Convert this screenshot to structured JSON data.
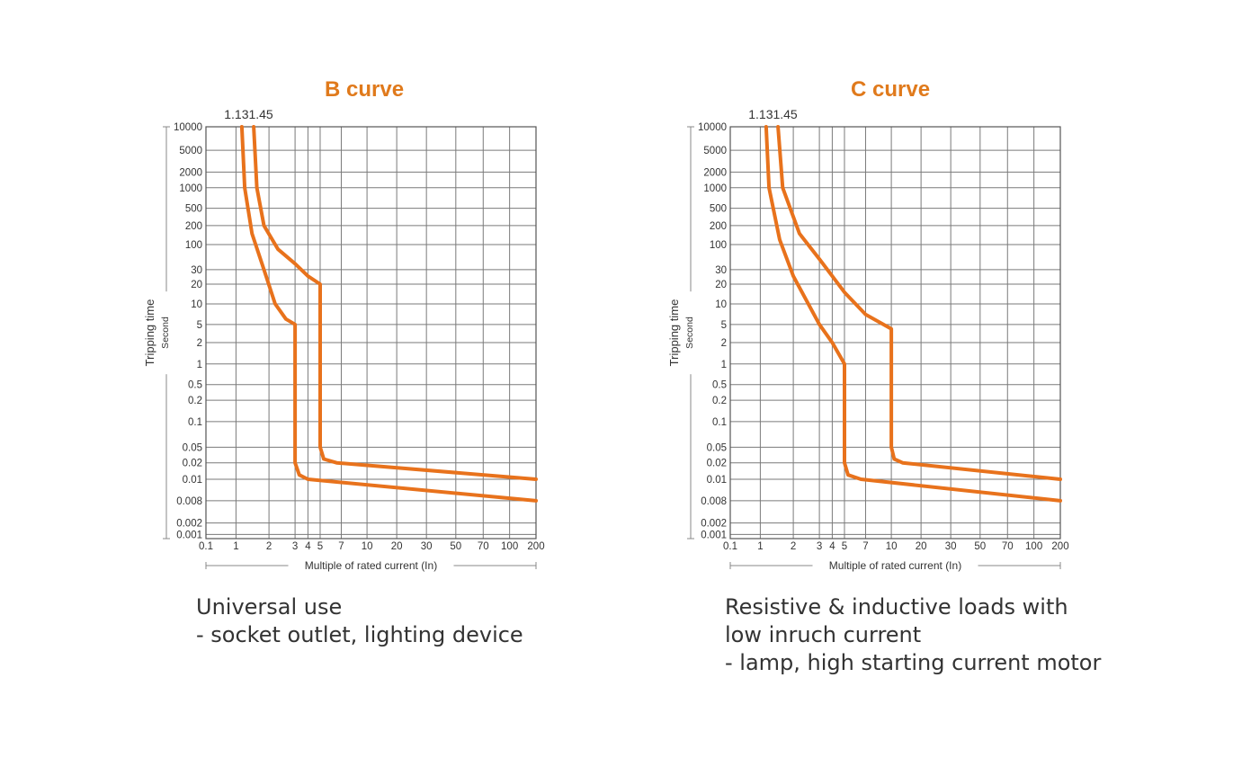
{
  "charts": [
    {
      "title": "B curve",
      "marker_labels": [
        "1.13",
        "1.45"
      ],
      "description": [
        "Universal use",
        "- socket outlet, lighting device"
      ]
    },
    {
      "title": "C curve",
      "marker_labels": [
        "1.13",
        "1.45"
      ],
      "description": [
        "Resistive & inductive loads with",
        "low inruch current",
        "- lamp, high starting current motor"
      ]
    }
  ],
  "chart_data": [
    {
      "type": "line",
      "title": "B curve",
      "xlabel": "Multiple of rated current (In)",
      "ylabel": "Tripping time",
      "ylabel_unit": "Second",
      "x_ticks": [
        "0.1",
        "1",
        "2",
        "3",
        "4",
        "5",
        "7",
        "10",
        "20",
        "30",
        "50",
        "70",
        "100",
        "200"
      ],
      "y_ticks": [
        "10000",
        "5000",
        "2000",
        "1000",
        "500",
        "200",
        "100",
        "30",
        "20",
        "10",
        "5",
        "2",
        "1",
        "0.5",
        "0.2",
        "0.1",
        "0.05",
        "0.02",
        "0.01",
        "0.008",
        "0.002",
        "0.001"
      ],
      "marker_labels": [
        "1.13",
        "1.45"
      ],
      "color": "#e8721c",
      "series": [
        {
          "values": [
            [
              1.13,
              10000
            ],
            [
              1.2,
              1000
            ],
            [
              1.4,
              150
            ],
            [
              1.8,
              30
            ],
            [
              2.2,
              10
            ],
            [
              2.6,
              6
            ],
            [
              3,
              5
            ],
            [
              3,
              0.02
            ],
            [
              3.3,
              0.012
            ],
            [
              4,
              0.01
            ],
            [
              200,
              0.008
            ]
          ]
        },
        {
          "values": [
            [
              1.45,
              10000
            ],
            [
              1.55,
              1000
            ],
            [
              1.8,
              200
            ],
            [
              2.3,
              80
            ],
            [
              3,
              40
            ],
            [
              4,
              25
            ],
            [
              5,
              20
            ],
            [
              5,
              0.05
            ],
            [
              5.3,
              0.025
            ],
            [
              6.5,
              0.02
            ],
            [
              200,
              0.01
            ]
          ]
        }
      ]
    },
    {
      "type": "line",
      "title": "C curve",
      "xlabel": "Multiple of rated current (In)",
      "ylabel": "Tripping time",
      "ylabel_unit": "Second",
      "x_ticks": [
        "0.1",
        "1",
        "2",
        "3",
        "4",
        "5",
        "7",
        "10",
        "20",
        "30",
        "50",
        "70",
        "100",
        "200"
      ],
      "y_ticks": [
        "10000",
        "5000",
        "2000",
        "1000",
        "500",
        "200",
        "100",
        "30",
        "20",
        "10",
        "5",
        "2",
        "1",
        "0.5",
        "0.2",
        "0.1",
        "0.05",
        "0.02",
        "0.01",
        "0.008",
        "0.002",
        "0.001"
      ],
      "marker_labels": [
        "1.13",
        "1.45"
      ],
      "color": "#e8721c",
      "series": [
        {
          "values": [
            [
              1.13,
              10000
            ],
            [
              1.2,
              1000
            ],
            [
              1.5,
              120
            ],
            [
              2,
              25
            ],
            [
              3,
              5
            ],
            [
              4,
              2
            ],
            [
              5,
              1
            ],
            [
              5,
              0.02
            ],
            [
              5.3,
              0.012
            ],
            [
              6.5,
              0.01
            ],
            [
              200,
              0.008
            ]
          ]
        },
        {
          "values": [
            [
              1.45,
              10000
            ],
            [
              1.6,
              1000
            ],
            [
              2.2,
              150
            ],
            [
              3,
              50
            ],
            [
              5,
              15
            ],
            [
              7,
              7
            ],
            [
              10,
              4
            ],
            [
              10,
              0.05
            ],
            [
              10.7,
              0.025
            ],
            [
              13,
              0.02
            ],
            [
              200,
              0.01
            ]
          ]
        }
      ]
    }
  ]
}
